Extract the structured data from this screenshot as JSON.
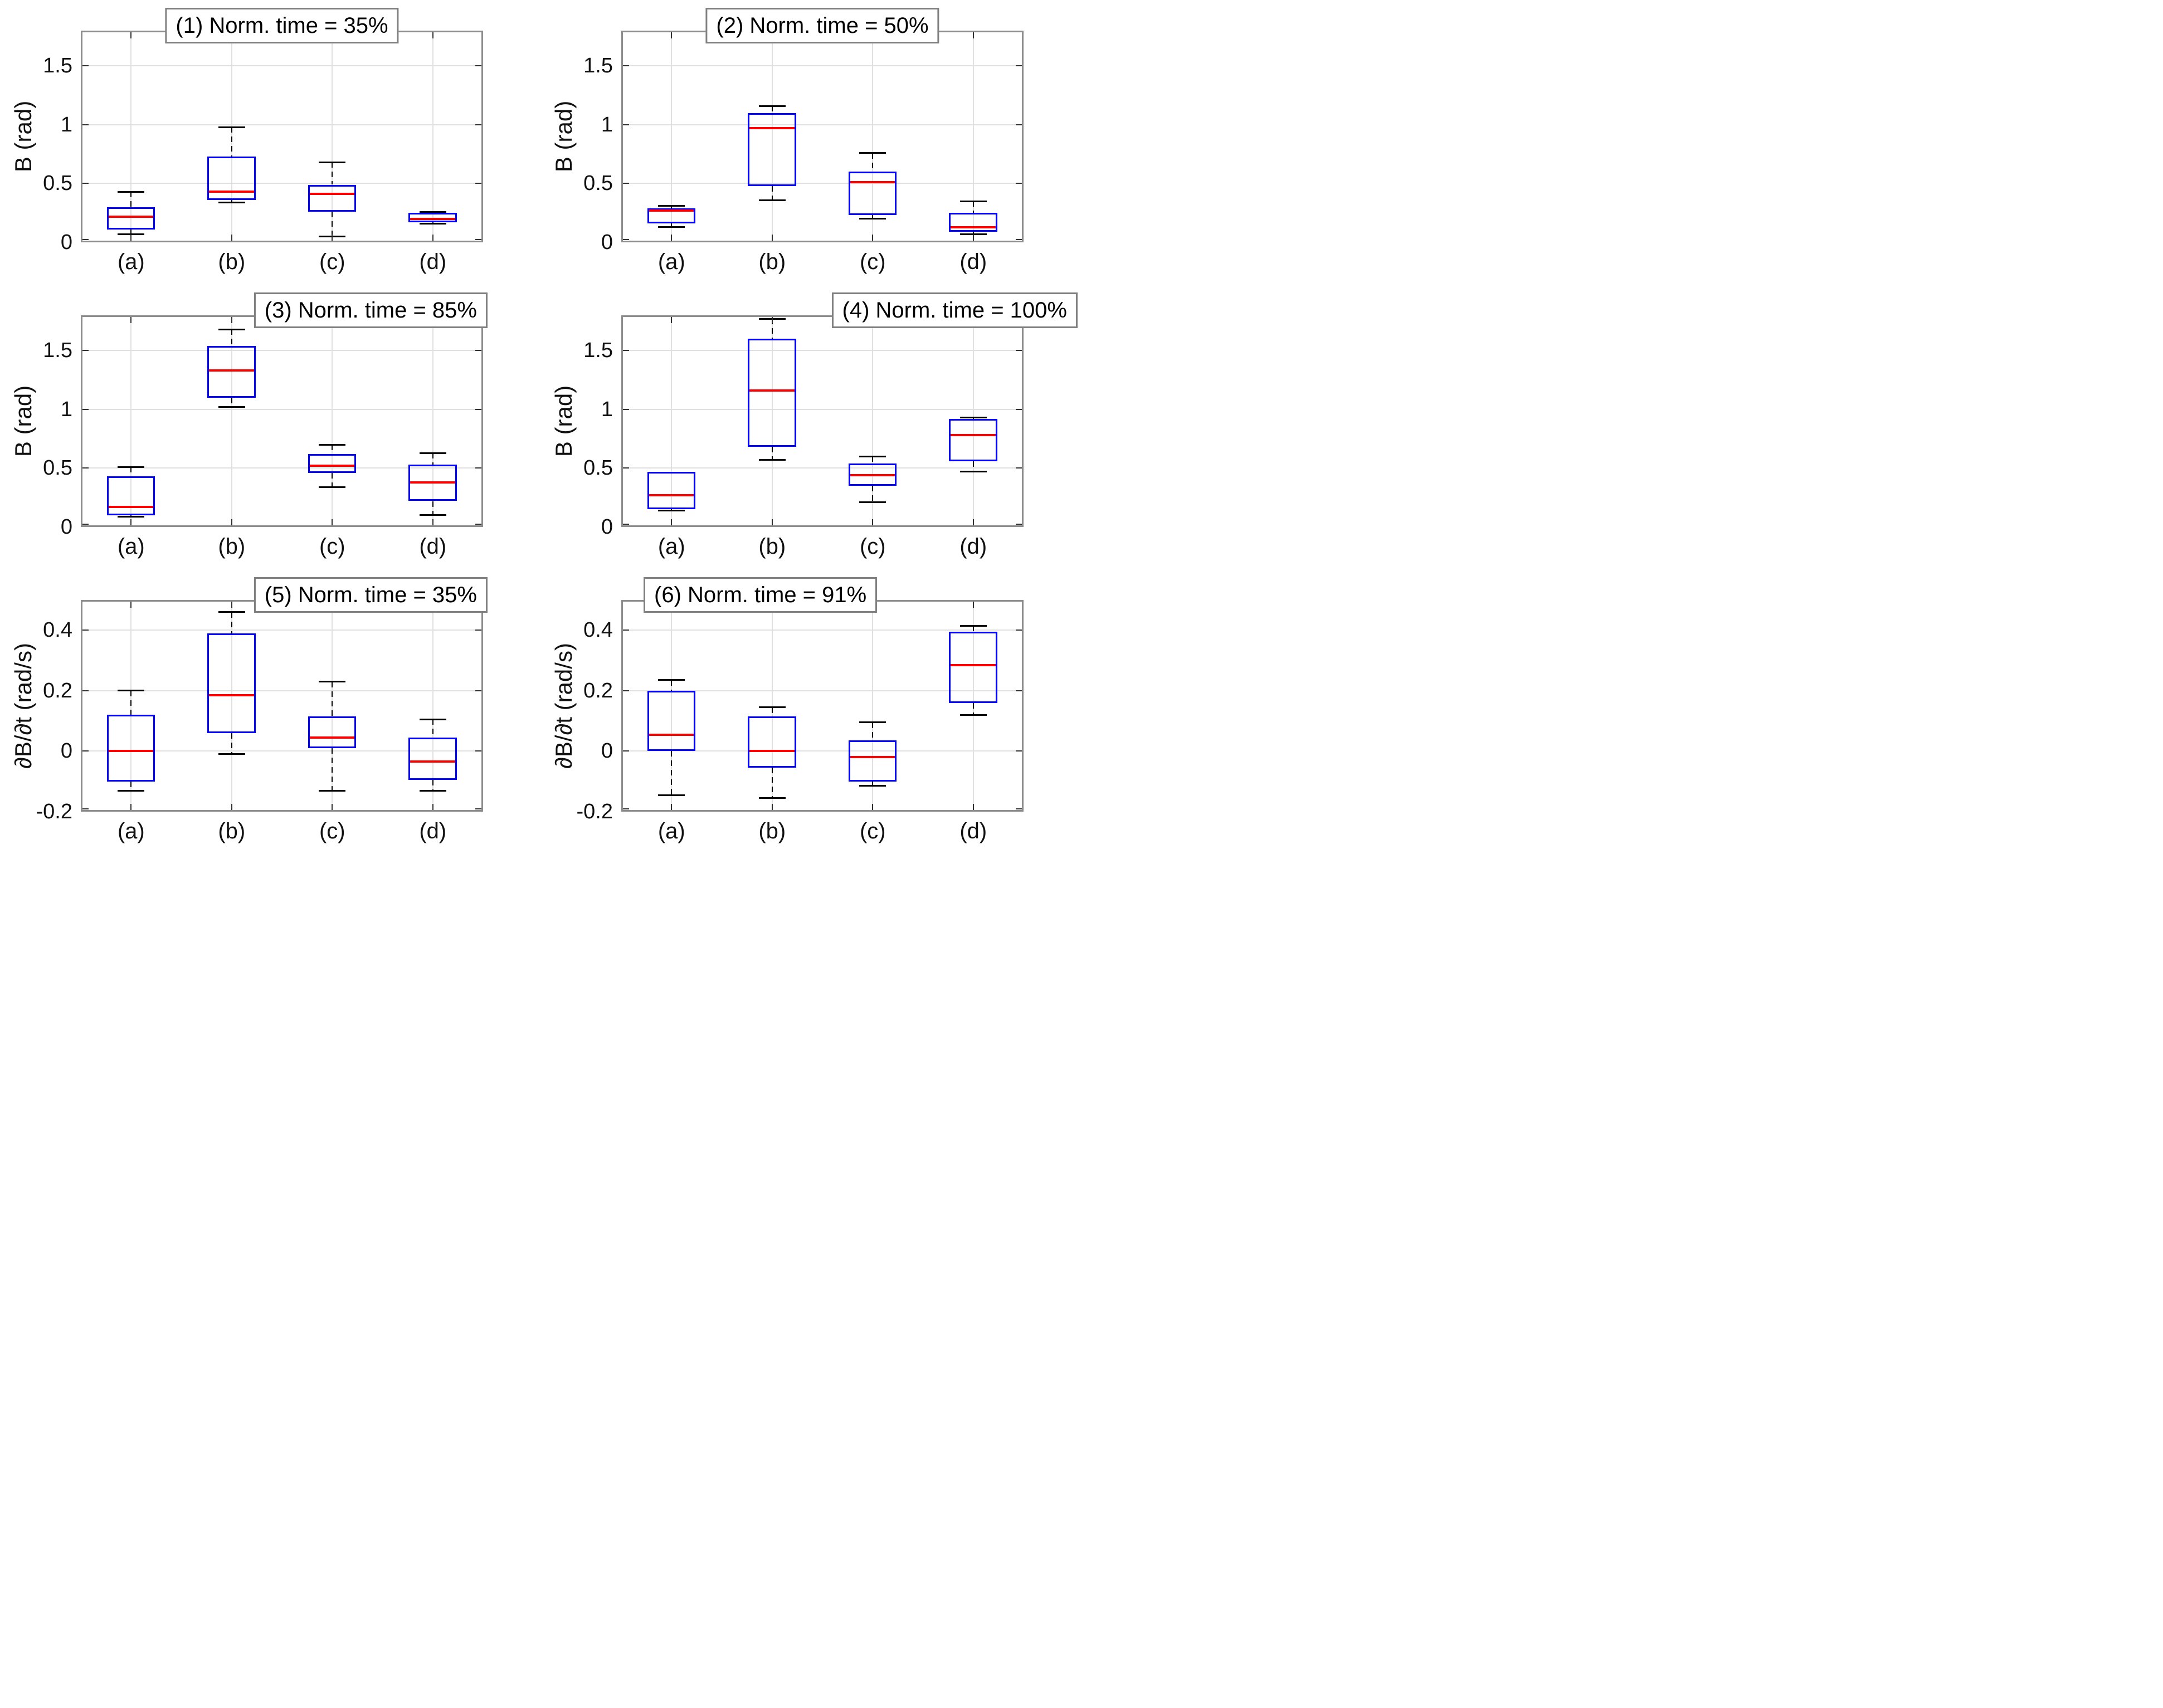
{
  "figure": {
    "rows": 3,
    "columns": 2,
    "background": "#ffffff"
  },
  "style": {
    "box_color": "#0000ff",
    "median_color": "#ff0000",
    "whisker_color": "#000000",
    "axis_border_color": "#8c8c8c",
    "title_border_color": "#808080",
    "grid_color": "#e0e0e0",
    "tick_color": "#303030",
    "text_color": "#000000"
  },
  "chart_data": [
    {
      "type": "boxplot",
      "title": "(1) Norm. time = 35%",
      "title_align": "center",
      "ylabel": "B (rad)",
      "ylim": [
        0,
        1.8
      ],
      "xlim": [
        0.5,
        4.5
      ],
      "grid": true,
      "yticks": [
        0,
        0.5,
        1,
        1.5
      ],
      "ytick_labels": [
        "0",
        "0.5",
        "1",
        "1.5"
      ],
      "categories": [
        "(a)",
        "(b)",
        "(c)",
        "(d)"
      ],
      "boxes": [
        {
          "category": "(a)",
          "whisker_low": 0.07,
          "q1": 0.11,
          "median": 0.22,
          "q3": 0.3,
          "whisker_high": 0.43
        },
        {
          "category": "(b)",
          "whisker_low": 0.34,
          "q1": 0.36,
          "median": 0.43,
          "q3": 0.73,
          "whisker_high": 0.98
        },
        {
          "category": "(c)",
          "whisker_low": 0.05,
          "q1": 0.26,
          "median": 0.41,
          "q3": 0.49,
          "whisker_high": 0.68
        },
        {
          "category": "(d)",
          "whisker_low": 0.16,
          "q1": 0.17,
          "median": 0.2,
          "q3": 0.25,
          "whisker_high": 0.26
        }
      ]
    },
    {
      "type": "boxplot",
      "title": "(2) Norm. time = 50%",
      "title_align": "center",
      "ylabel": "B (rad)",
      "ylim": [
        0,
        1.8
      ],
      "xlim": [
        0.5,
        4.5
      ],
      "grid": true,
      "yticks": [
        0,
        0.5,
        1,
        1.5
      ],
      "ytick_labels": [
        "0",
        "0.5",
        "1",
        "1.5"
      ],
      "categories": [
        "(a)",
        "(b)",
        "(c)",
        "(d)"
      ],
      "boxes": [
        {
          "category": "(a)",
          "whisker_low": 0.13,
          "q1": 0.16,
          "median": 0.27,
          "q3": 0.29,
          "whisker_high": 0.31
        },
        {
          "category": "(b)",
          "whisker_low": 0.36,
          "q1": 0.48,
          "median": 0.97,
          "q3": 1.1,
          "whisker_high": 1.16
        },
        {
          "category": "(c)",
          "whisker_low": 0.2,
          "q1": 0.23,
          "median": 0.51,
          "q3": 0.6,
          "whisker_high": 0.76
        },
        {
          "category": "(d)",
          "whisker_low": 0.07,
          "q1": 0.09,
          "median": 0.13,
          "q3": 0.25,
          "whisker_high": 0.35
        }
      ]
    },
    {
      "type": "boxplot",
      "title": "(3) Norm. time = 85%",
      "title_align": "right",
      "ylabel": "B (rad)",
      "ylim": [
        0,
        1.8
      ],
      "xlim": [
        0.5,
        4.5
      ],
      "grid": true,
      "yticks": [
        0,
        0.5,
        1,
        1.5
      ],
      "ytick_labels": [
        "0",
        "0.5",
        "1",
        "1.5"
      ],
      "categories": [
        "(a)",
        "(b)",
        "(c)",
        "(d)"
      ],
      "boxes": [
        {
          "category": "(a)",
          "whisker_low": 0.09,
          "q1": 0.1,
          "median": 0.17,
          "q3": 0.43,
          "whisker_high": 0.51
        },
        {
          "category": "(b)",
          "whisker_low": 1.02,
          "q1": 1.1,
          "median": 1.33,
          "q3": 1.54,
          "whisker_high": 1.68
        },
        {
          "category": "(c)",
          "whisker_low": 0.34,
          "q1": 0.46,
          "median": 0.52,
          "q3": 0.62,
          "whisker_high": 0.7
        },
        {
          "category": "(d)",
          "whisker_low": 0.1,
          "q1": 0.22,
          "median": 0.38,
          "q3": 0.53,
          "whisker_high": 0.63
        }
      ]
    },
    {
      "type": "boxplot",
      "title": "(4) Norm. time = 100%",
      "title_align": "right-overhang",
      "ylabel": "B (rad)",
      "ylim": [
        0,
        1.8
      ],
      "xlim": [
        0.5,
        4.5
      ],
      "grid": true,
      "yticks": [
        0,
        0.5,
        1,
        1.5
      ],
      "ytick_labels": [
        "0",
        "0.5",
        "1",
        "1.5"
      ],
      "categories": [
        "(a)",
        "(b)",
        "(c)",
        "(d)"
      ],
      "boxes": [
        {
          "category": "(a)",
          "whisker_low": 0.14,
          "q1": 0.15,
          "median": 0.27,
          "q3": 0.47,
          "whisker_high": 0.47
        },
        {
          "category": "(b)",
          "whisker_low": 0.57,
          "q1": 0.68,
          "median": 1.16,
          "q3": 1.6,
          "whisker_high": 1.77
        },
        {
          "category": "(c)",
          "whisker_low": 0.21,
          "q1": 0.35,
          "median": 0.44,
          "q3": 0.54,
          "whisker_high": 0.6
        },
        {
          "category": "(d)",
          "whisker_low": 0.47,
          "q1": 0.56,
          "median": 0.78,
          "q3": 0.92,
          "whisker_high": 0.93
        }
      ]
    },
    {
      "type": "boxplot",
      "title": "(5) Norm. time = 35%",
      "title_align": "right",
      "ylabel": "∂B/∂t (rad/s)",
      "ylim": [
        -0.2,
        0.5
      ],
      "xlim": [
        0.5,
        4.5
      ],
      "grid": true,
      "yticks": [
        -0.2,
        0,
        0.2,
        0.4
      ],
      "ytick_labels": [
        "-0.2",
        "0",
        "0.2",
        "0.4"
      ],
      "categories": [
        "(a)",
        "(b)",
        "(c)",
        "(d)"
      ],
      "boxes": [
        {
          "category": "(a)",
          "whisker_low": -0.13,
          "q1": -0.1,
          "median": 0.0,
          "q3": 0.12,
          "whisker_high": 0.2
        },
        {
          "category": "(b)",
          "whisker_low": -0.01,
          "q1": 0.06,
          "median": 0.185,
          "q3": 0.39,
          "whisker_high": 0.46
        },
        {
          "category": "(c)",
          "whisker_low": -0.13,
          "q1": 0.01,
          "median": 0.045,
          "q3": 0.115,
          "whisker_high": 0.23
        },
        {
          "category": "(d)",
          "whisker_low": -0.13,
          "q1": -0.095,
          "median": -0.035,
          "q3": 0.045,
          "whisker_high": 0.105
        }
      ]
    },
    {
      "type": "boxplot",
      "title": "(6) Norm. time = 91%",
      "title_align": "left",
      "ylabel": "∂B/∂t (rad/s)",
      "ylim": [
        -0.2,
        0.5
      ],
      "xlim": [
        0.5,
        4.5
      ],
      "grid": true,
      "yticks": [
        -0.2,
        0,
        0.2,
        0.4
      ],
      "ytick_labels": [
        "-0.2",
        "0",
        "0.2",
        "0.4"
      ],
      "categories": [
        "(a)",
        "(b)",
        "(c)",
        "(d)"
      ],
      "boxes": [
        {
          "category": "(a)",
          "whisker_low": -0.145,
          "q1": 0.0,
          "median": 0.055,
          "q3": 0.2,
          "whisker_high": 0.235
        },
        {
          "category": "(b)",
          "whisker_low": -0.155,
          "q1": -0.055,
          "median": 0.0,
          "q3": 0.115,
          "whisker_high": 0.145
        },
        {
          "category": "(c)",
          "whisker_low": -0.115,
          "q1": -0.1,
          "median": -0.02,
          "q3": 0.035,
          "whisker_high": 0.095
        },
        {
          "category": "(d)",
          "whisker_low": 0.12,
          "q1": 0.16,
          "median": 0.285,
          "q3": 0.395,
          "whisker_high": 0.415
        }
      ]
    }
  ]
}
